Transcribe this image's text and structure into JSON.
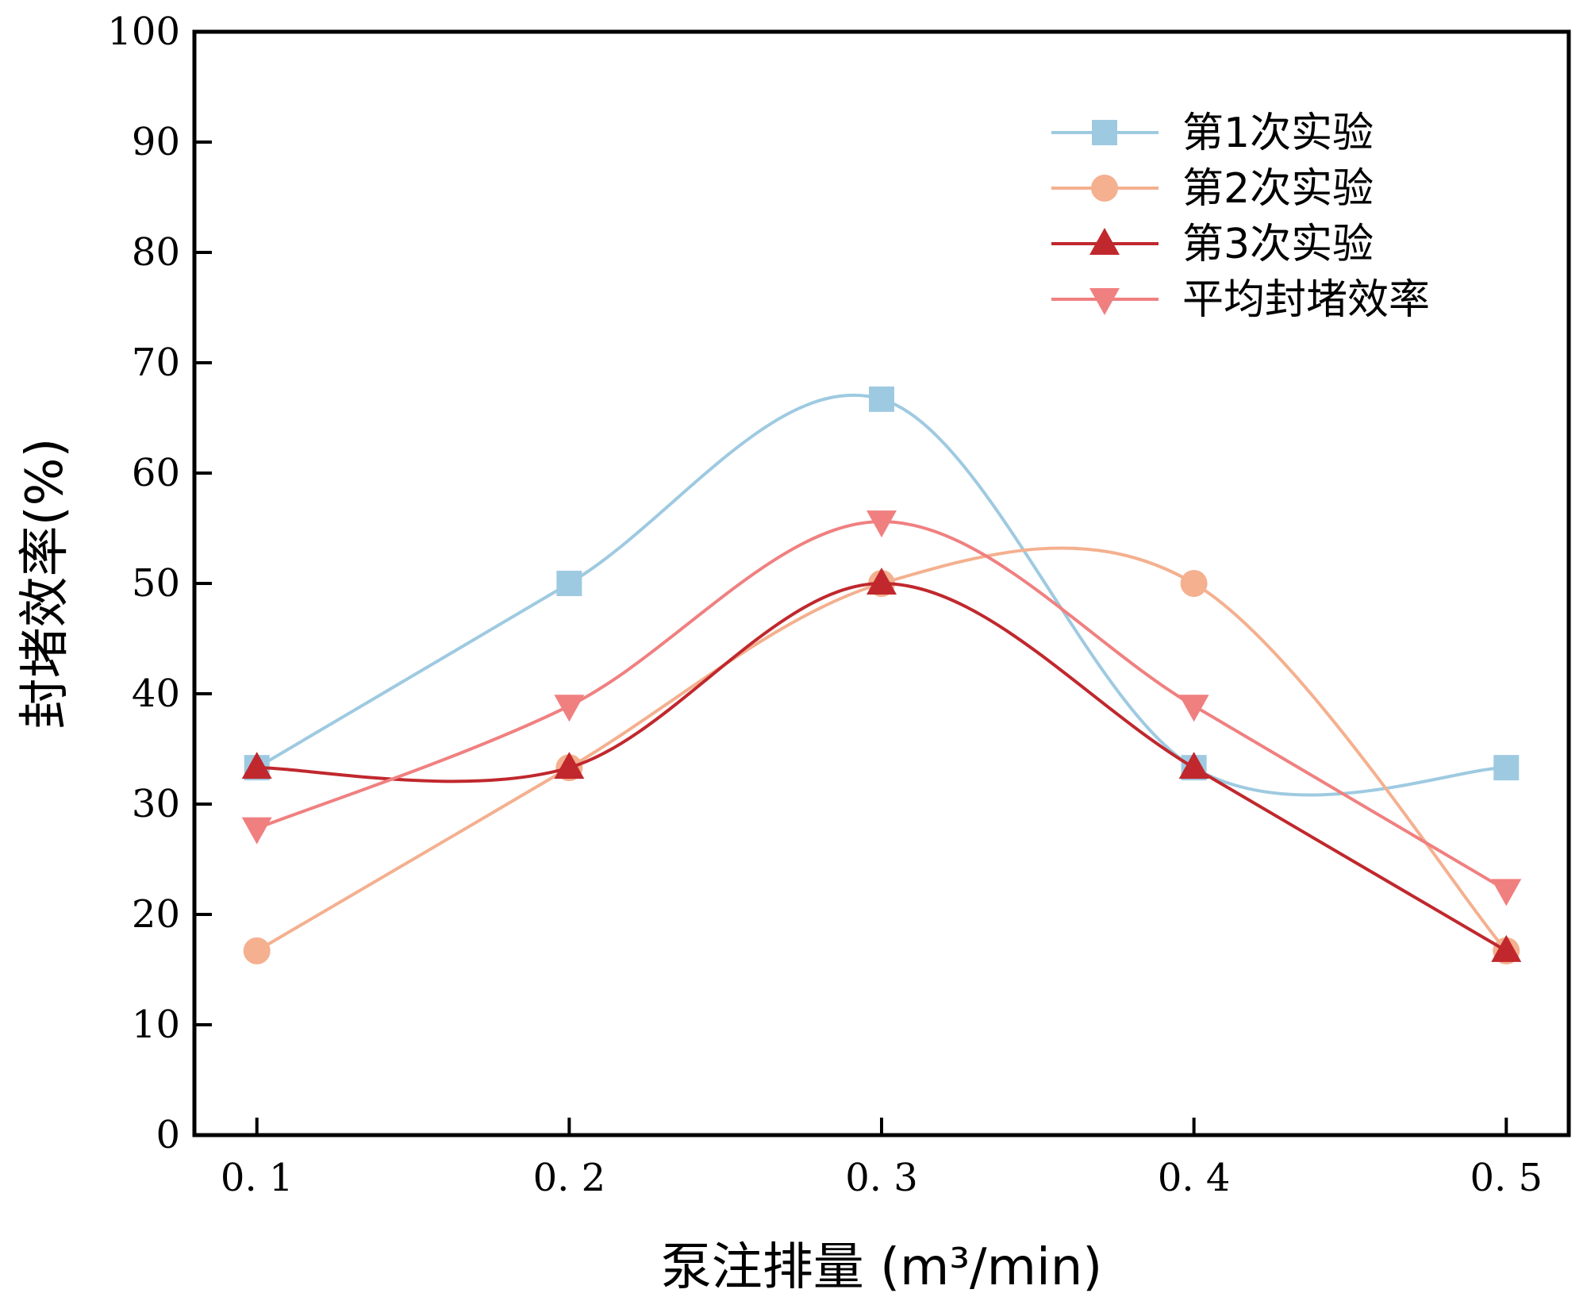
{
  "chart_data": {
    "type": "line",
    "title": "",
    "xlabel": "泵注排量 (m³/min)",
    "ylabel": "封堵效率(%)",
    "x": [
      0.1,
      0.2,
      0.3,
      0.4,
      0.5
    ],
    "x_tick_labels": [
      "0. 1",
      "0. 2",
      "0. 3",
      "0. 4",
      "0. 5"
    ],
    "y_ticks": [
      0,
      10,
      20,
      30,
      40,
      50,
      60,
      70,
      80,
      90,
      100
    ],
    "y_tick_labels": [
      "0",
      "10",
      "20",
      "30",
      "40",
      "50",
      "60",
      "70",
      "80",
      "90",
      "100"
    ],
    "xlim": [
      0.08,
      0.52
    ],
    "ylim": [
      0,
      100
    ],
    "grid": false,
    "legend_position": "top-right",
    "series": [
      {
        "name": "第1次实验",
        "marker": "square",
        "color": "#9ecae1",
        "values": [
          33.3,
          50.0,
          66.7,
          33.3,
          33.3
        ]
      },
      {
        "name": "第2次实验",
        "marker": "circle",
        "color": "#f4b08f",
        "values": [
          16.7,
          33.3,
          50.0,
          50.0,
          16.7
        ]
      },
      {
        "name": "第3次实验",
        "marker": "triangle-up",
        "color": "#c0282d",
        "values": [
          33.3,
          33.3,
          50.0,
          33.3,
          16.7
        ]
      },
      {
        "name": "平均封堵效率",
        "marker": "triangle-down",
        "color": "#f08080",
        "values": [
          27.8,
          38.9,
          55.6,
          38.9,
          22.2
        ]
      }
    ]
  }
}
